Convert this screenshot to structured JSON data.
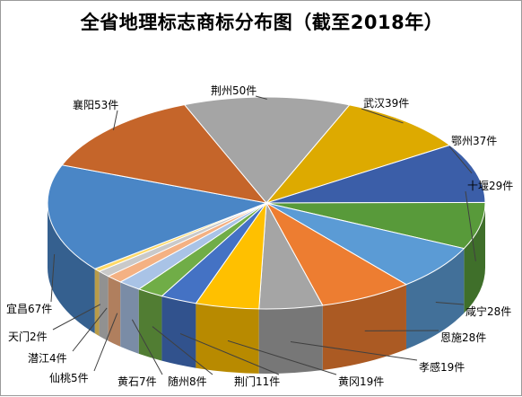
{
  "chart_data": {
    "type": "pie",
    "title": "全省地理标志商标分布图（截至2018年）",
    "unit": "件",
    "slices": [
      {
        "name": "荆州",
        "value": 50,
        "label": "荆州50件",
        "color": "#a5a5a5"
      },
      {
        "name": "武汉",
        "value": 39,
        "label": "武汉39件",
        "color": "#ddaa00"
      },
      {
        "name": "鄂州",
        "value": 37,
        "label": "鄂州37件",
        "color": "#3b5ea8"
      },
      {
        "name": "十堰",
        "value": 29,
        "label": "十堰29件",
        "color": "#589a3a"
      },
      {
        "name": "咸宁",
        "value": 28,
        "label": "咸宁28件",
        "color": "#5b9bd5"
      },
      {
        "name": "恩施",
        "value": 28,
        "label": "恩施28件",
        "color": "#ed7d31"
      },
      {
        "name": "孝感",
        "value": 19,
        "label": "孝感19件",
        "color": "#a5a5a5"
      },
      {
        "name": "黄冈",
        "value": 19,
        "label": "黄冈19件",
        "color": "#ffc000"
      },
      {
        "name": "荆门",
        "value": 11,
        "label": "荆门11件",
        "color": "#4472c4"
      },
      {
        "name": "随州",
        "value": 8,
        "label": "随州8件",
        "color": "#70ad47"
      },
      {
        "name": "黄石",
        "value": 7,
        "label": "黄石7件",
        "color": "#a9c3e6"
      },
      {
        "name": "仙桃",
        "value": 5,
        "label": "仙桃5件",
        "color": "#f4b183"
      },
      {
        "name": "潜江",
        "value": 4,
        "label": "潜江4件",
        "color": "#c9c9c9"
      },
      {
        "name": "天门",
        "value": 2,
        "label": "天门2件",
        "color": "#ffd966"
      },
      {
        "name": "宜昌",
        "value": 67,
        "label": "宜昌67件",
        "color": "#4a86c6"
      },
      {
        "name": "襄阳",
        "value": 53,
        "label": "襄阳53件",
        "color": "#c5652a"
      }
    ]
  }
}
